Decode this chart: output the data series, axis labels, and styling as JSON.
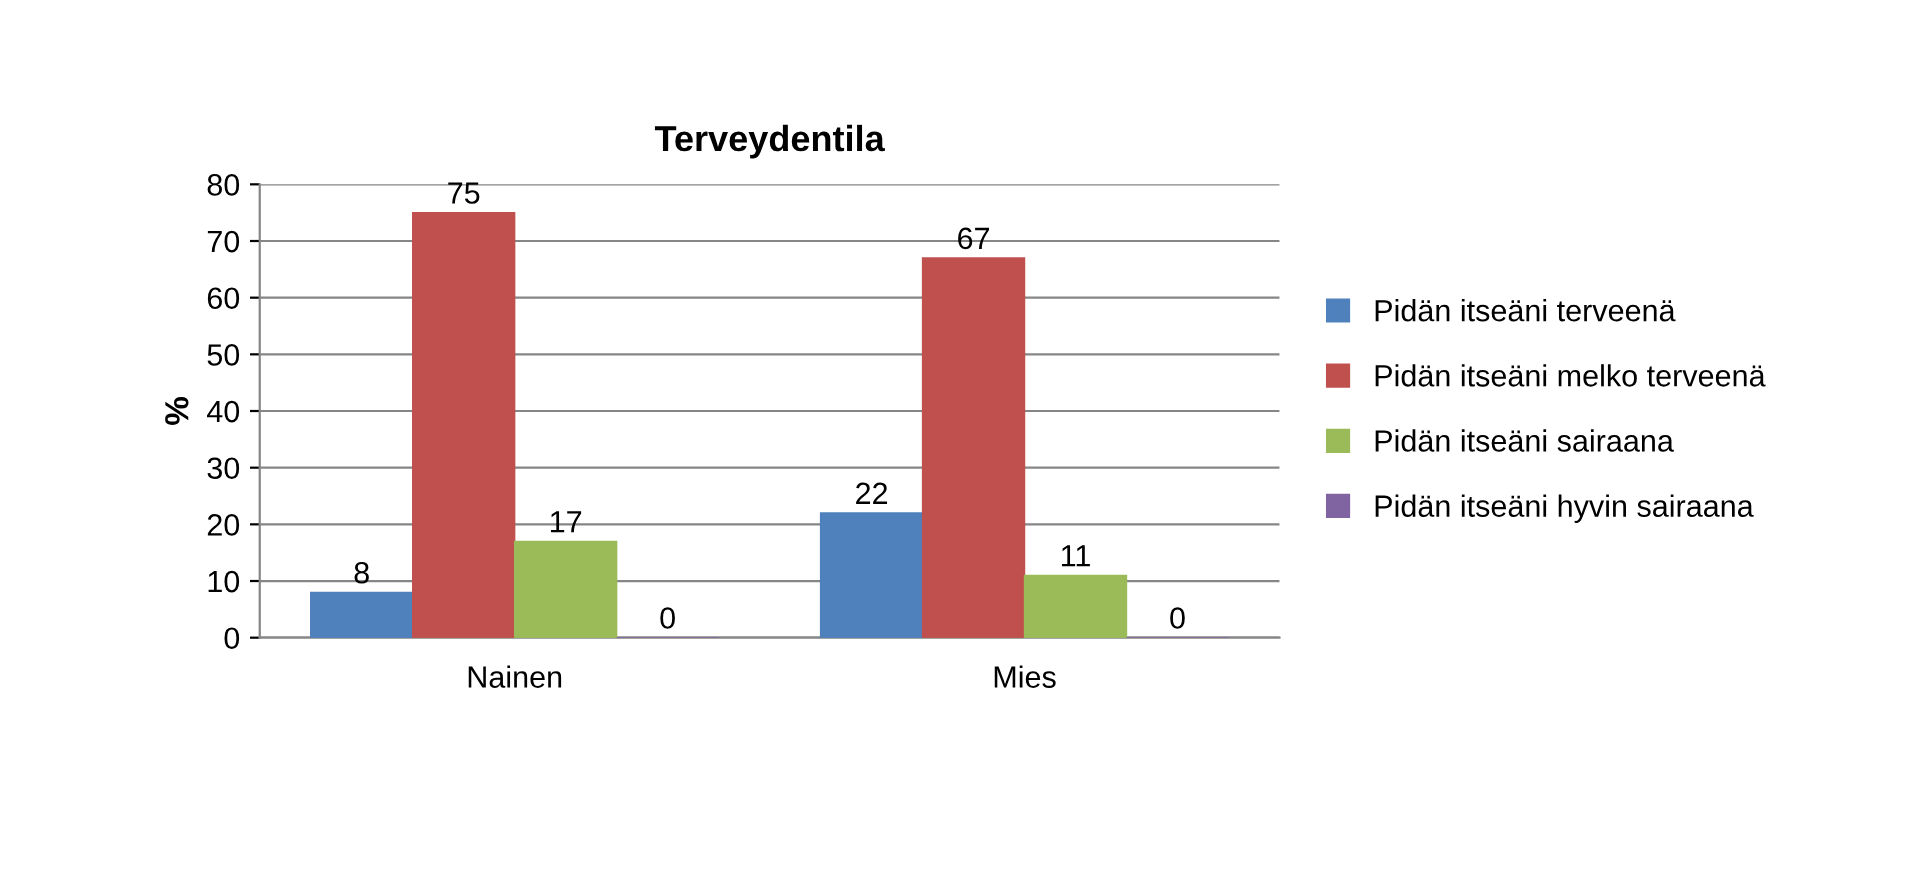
{
  "chart_data": {
    "type": "bar",
    "title": "Terveydentila",
    "ylabel": "%",
    "categories": [
      "Nainen",
      "Mies"
    ],
    "series": [
      {
        "name": "Pidän itseäni terveenä",
        "color": "#4f81bd",
        "values": [
          8,
          22
        ]
      },
      {
        "name": "Pidän itseäni melko terveenä",
        "color": "#c0504d",
        "values": [
          75,
          67
        ]
      },
      {
        "name": "Pidän itseäni sairaana",
        "color": "#9bbb59",
        "values": [
          17,
          11
        ]
      },
      {
        "name": "Pidän itseäni hyvin sairaana",
        "color": "#8064a2",
        "values": [
          0,
          0
        ]
      }
    ],
    "ylim": [
      0,
      80
    ],
    "yticks": [
      0,
      10,
      20,
      30,
      40,
      50,
      60,
      70,
      80
    ],
    "grid": "y",
    "legend": "right",
    "data_labels": true
  }
}
